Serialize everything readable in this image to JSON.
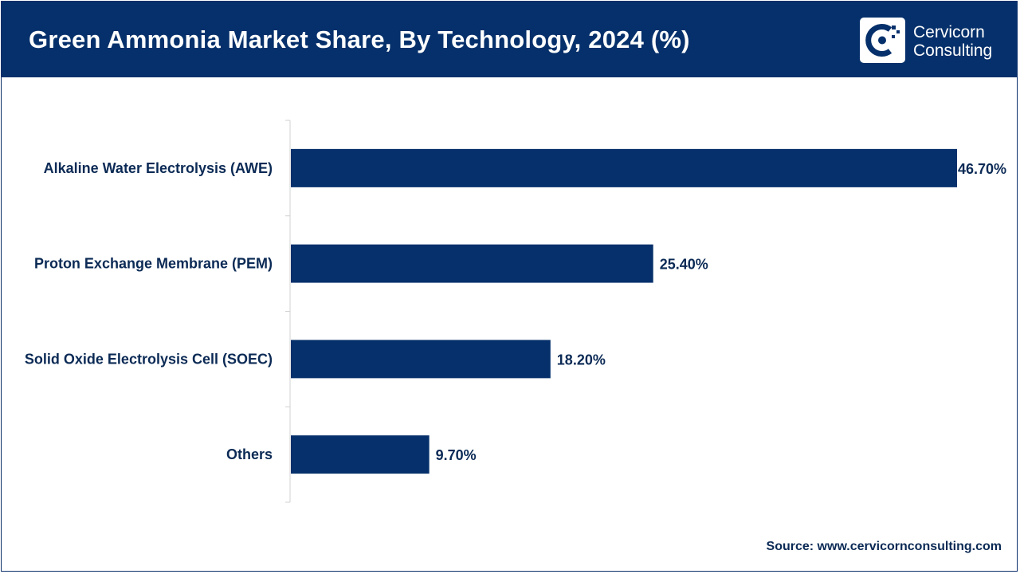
{
  "header": {
    "title": "Green Ammonia Market Share, By Technology, 2024 (%)",
    "logo_line1": "Cervicorn",
    "logo_line2": "Consulting"
  },
  "chart_data": {
    "type": "bar",
    "orientation": "horizontal",
    "title": "Green Ammonia Market Share, By Technology, 2024 (%)",
    "categories": [
      "Alkaline Water Electrolysis (AWE)",
      "Proton Exchange Membrane (PEM)",
      "Solid Oxide Electrolysis Cell (SOEC)",
      "Others"
    ],
    "values": [
      46.7,
      25.4,
      18.2,
      9.7
    ],
    "data_labels": [
      "46.70%",
      "25.40%",
      "18.20%",
      "9.70%"
    ],
    "unit": "%",
    "xlabel": "",
    "ylabel": "",
    "xlim": [
      0,
      46.7
    ],
    "grid": false,
    "legend": "none",
    "bar_color": "#06306b"
  },
  "footer": {
    "source": "Source: www.cervicornconsulting.com"
  }
}
